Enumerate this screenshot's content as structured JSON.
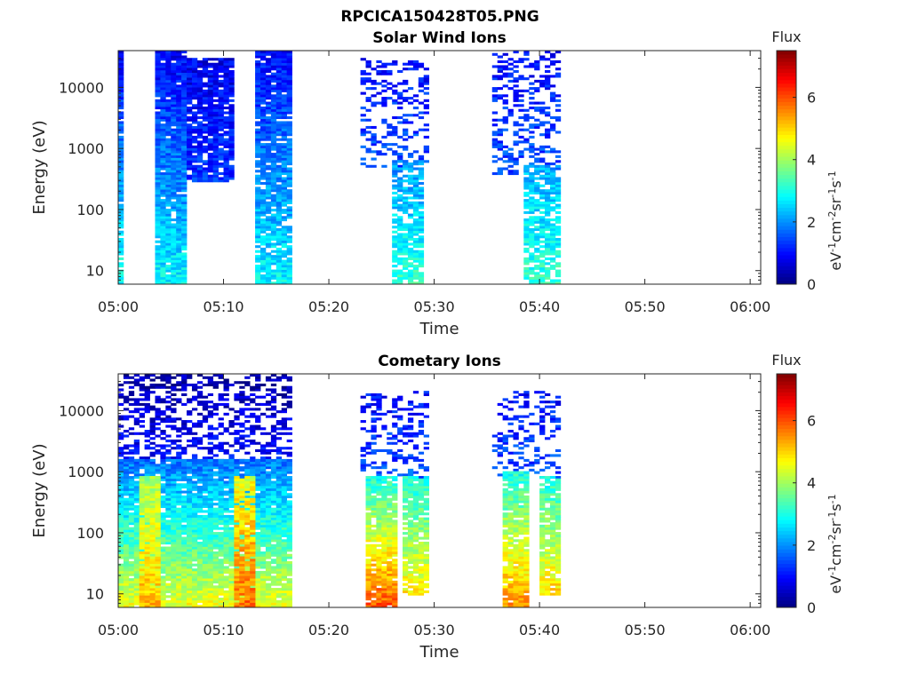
{
  "figure": {
    "title": "RPCICA150428T05.PNG",
    "colorbar_label_main": "eV",
    "colorbar_label_units": [
      "-1",
      "cm",
      "-2",
      "sr",
      "-1",
      "s",
      "-1"
    ]
  },
  "chart_data": [
    {
      "type": "heatmap",
      "title": "Solar Wind Ions",
      "xlabel": "Time",
      "ylabel": "Energy (eV)",
      "x_ticks": [
        "05:00",
        "05:10",
        "05:20",
        "05:30",
        "05:40",
        "05:50",
        "06:00"
      ],
      "x_range": [
        "05:00",
        "06:01"
      ],
      "y_scale": "log",
      "y_ticks": [
        10,
        100,
        1000,
        10000
      ],
      "y_range": [
        6,
        40000
      ],
      "colorbar": {
        "title": "Flux",
        "range": [
          0,
          7.5
        ],
        "ticks": [
          0,
          2,
          4,
          6
        ],
        "colormap": "jet"
      },
      "blocks": [
        {
          "t": [
            0.0,
            0.5
          ],
          "e": [
            6,
            38000
          ],
          "flux_low": 3.0,
          "flux_high": 0.9,
          "density": 0.92
        },
        {
          "t": [
            3.5,
            6.5
          ],
          "e": [
            6,
            38000
          ],
          "flux_low": 2.8,
          "flux_high": 0.9,
          "density": 0.95
        },
        {
          "t": [
            6.5,
            11.0
          ],
          "e": [
            300,
            30000
          ],
          "flux_low": 1.3,
          "flux_high": 0.8,
          "density": 0.85
        },
        {
          "t": [
            13.0,
            16.5
          ],
          "e": [
            6,
            38000
          ],
          "flux_low": 2.8,
          "flux_high": 1.0,
          "density": 0.9
        },
        {
          "t": [
            23.0,
            29.5
          ],
          "e": [
            500,
            30000
          ],
          "flux_low": 1.5,
          "flux_high": 1.0,
          "density": 0.35
        },
        {
          "t": [
            26.0,
            29.0
          ],
          "e": [
            6,
            600
          ],
          "flux_low": 3.2,
          "flux_high": 2.0,
          "density": 0.75
        },
        {
          "t": [
            35.5,
            42.0
          ],
          "e": [
            400,
            38000
          ],
          "flux_low": 1.5,
          "flux_high": 1.0,
          "density": 0.35
        },
        {
          "t": [
            38.5,
            42.0
          ],
          "e": [
            6,
            500
          ],
          "flux_low": 3.2,
          "flux_high": 2.2,
          "density": 0.75
        }
      ]
    },
    {
      "type": "heatmap",
      "title": "Cometary Ions",
      "xlabel": "Time",
      "ylabel": "Energy (eV)",
      "x_ticks": [
        "05:00",
        "05:10",
        "05:20",
        "05:30",
        "05:40",
        "05:50",
        "06:00"
      ],
      "x_range": [
        "05:00",
        "06:01"
      ],
      "y_scale": "log",
      "y_ticks": [
        10,
        100,
        1000,
        10000
      ],
      "y_range": [
        6,
        40000
      ],
      "colorbar": {
        "title": "Flux",
        "range": [
          0,
          7.5
        ],
        "ticks": [
          0,
          2,
          4,
          6
        ],
        "colormap": "jet"
      },
      "blocks": [
        {
          "t": [
            0.0,
            16.5
          ],
          "e": [
            1500,
            38000
          ],
          "flux_low": 1.0,
          "flux_high": 0.3,
          "density": 0.45
        },
        {
          "t": [
            0.0,
            16.5
          ],
          "e": [
            6,
            1500
          ],
          "flux_low": 4.6,
          "flux_high": 1.8,
          "density": 0.95
        },
        {
          "t": [
            2.0,
            4.0
          ],
          "e": [
            6,
            800
          ],
          "flux_low": 5.2,
          "flux_high": 4.0,
          "density": 0.95
        },
        {
          "t": [
            11.0,
            13.0
          ],
          "e": [
            6,
            800
          ],
          "flux_low": 5.8,
          "flux_high": 4.5,
          "density": 0.9
        },
        {
          "t": [
            23.0,
            29.5
          ],
          "e": [
            800,
            20000
          ],
          "flux_low": 1.5,
          "flux_high": 1.0,
          "density": 0.3
        },
        {
          "t": [
            23.5,
            26.5
          ],
          "e": [
            6,
            800
          ],
          "flux_low": 6.0,
          "flux_high": 3.0,
          "density": 0.9
        },
        {
          "t": [
            27.0,
            29.5
          ],
          "e": [
            10,
            800
          ],
          "flux_low": 4.8,
          "flux_high": 3.0,
          "density": 0.85
        },
        {
          "t": [
            35.5,
            42.0
          ],
          "e": [
            800,
            20000
          ],
          "flux_low": 1.5,
          "flux_high": 1.0,
          "density": 0.3
        },
        {
          "t": [
            36.5,
            39.0
          ],
          "e": [
            6,
            1000
          ],
          "flux_low": 5.5,
          "flux_high": 3.0,
          "density": 0.9
        },
        {
          "t": [
            40.0,
            42.0
          ],
          "e": [
            10,
            800
          ],
          "flux_low": 5.0,
          "flux_high": 3.0,
          "density": 0.85
        }
      ]
    }
  ]
}
